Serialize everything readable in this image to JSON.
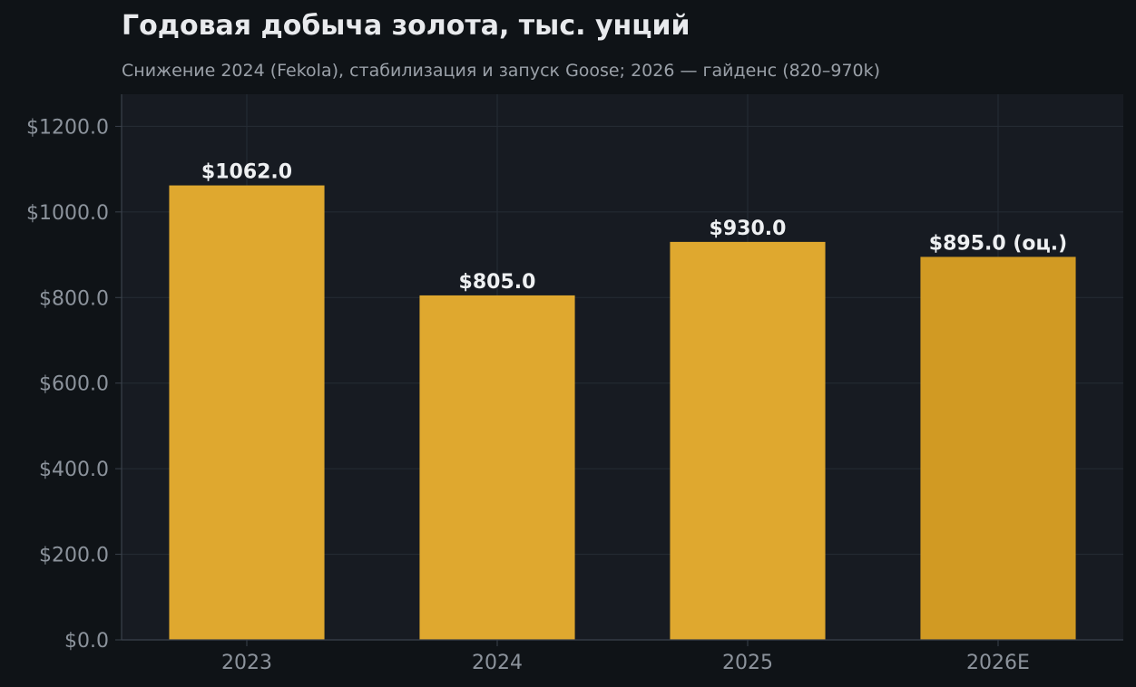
{
  "chart_data": {
    "type": "bar",
    "title": "Годовая добыча золота, тыс. унций",
    "subtitle": "Снижение 2024 (Fekola), стабилизация и запуск Goose; 2026 — гайденс (820–970k)",
    "categories": [
      "2023",
      "2024",
      "2025",
      "2026E"
    ],
    "values": [
      1062.0,
      805.0,
      930.0,
      895.0
    ],
    "value_labels": [
      "$1062.0",
      "$805.0",
      "$930.0",
      "$895.0 (оц.)"
    ],
    "estimated": [
      false,
      false,
      false,
      true
    ],
    "xlabel": "",
    "ylabel": "",
    "ylim": [
      0,
      1275
    ],
    "yticks": [
      0,
      200,
      400,
      600,
      800,
      1000,
      1200
    ],
    "ytick_labels": [
      "$0.0",
      "$200.0",
      "$400.0",
      "$600.0",
      "$800.0",
      "$1000.0",
      "$1200.0"
    ],
    "grid": true,
    "colors": {
      "page_background": "#0f1317",
      "plot_background": "#171b22",
      "bar": "#dfa82f",
      "bar_estimate": "#d19a23",
      "grid": "#262c35",
      "axis": "#3a414b",
      "tick_text": "#8c939c",
      "title_text": "#e8eaed",
      "subtitle_text": "#9aa0a8",
      "value_label_text": "#eef0f2"
    }
  }
}
